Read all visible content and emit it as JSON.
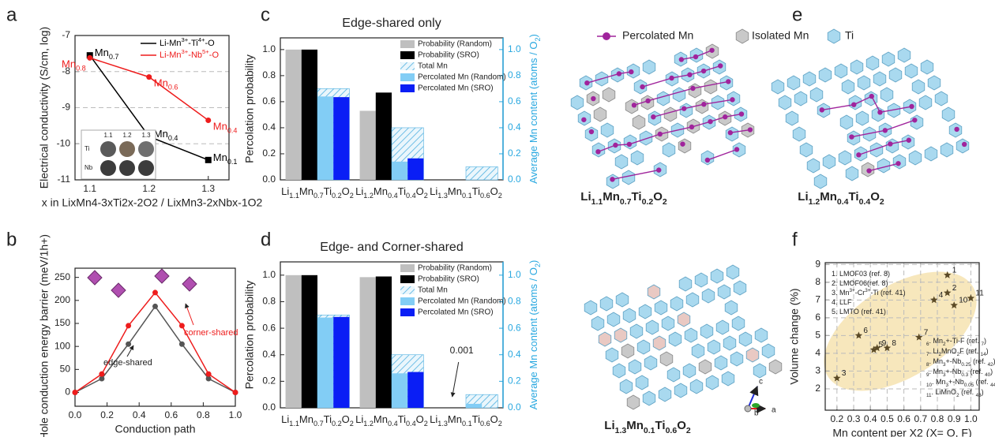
{
  "panel_letters": [
    "a",
    "b",
    "c",
    "d",
    "e",
    "f"
  ],
  "chart_data": [
    {
      "type": "line",
      "ylabel": "Electrical conductivity (S/cm, log)",
      "xlabel": "x in LixMn4-3xTi2x-2O2 / LixMn3-2xNbx-1O2",
      "x": [
        1.1,
        1.2,
        1.3
      ],
      "xlim": [
        1.075,
        1.335
      ],
      "xticks": [
        1.1,
        1.2,
        1.3
      ],
      "ylim": [
        -11,
        -7
      ],
      "yticks": [
        -11,
        -10,
        -9,
        -8,
        -7
      ],
      "grid": "y",
      "legend": "upper right",
      "series": [
        {
          "name": "Li-Mn3+-Ti4+-O",
          "color": "#000000",
          "marker": "square",
          "values": [
            -7.55,
            -9.8,
            -10.45
          ],
          "point_labels": [
            "Mn0.7",
            "Mn0.4",
            "Mn0.1"
          ]
        },
        {
          "name": "Li-Mn3+-Nb5+-O",
          "color": "#ee1c1c",
          "marker": "circle",
          "values": [
            -7.62,
            -8.15,
            -9.35
          ],
          "point_labels": [
            "Mn0.8",
            "Mn0.6",
            "Mn0.4"
          ]
        }
      ],
      "inset_labels": {
        "columns": [
          "1.1",
          "1.2",
          "1.3"
        ],
        "rows": [
          "Ti",
          "Nb"
        ]
      }
    },
    {
      "type": "line",
      "ylabel": "Hole conduction energy barrier (meV/1h+)",
      "xlabel": "Conduction path",
      "x": [
        0,
        0.167,
        0.333,
        0.5,
        0.667,
        0.833,
        1.0
      ],
      "xlim": [
        0,
        1
      ],
      "xticks": [
        {
          "value": 0,
          "label": "0.0"
        },
        0.2,
        0.4,
        0.6,
        0.8,
        {
          "value": 1,
          "label": "1.0"
        }
      ],
      "ylim": [
        -30,
        270
      ],
      "yticks": [
        0,
        50,
        100,
        150,
        200,
        250
      ],
      "series": [
        {
          "name": "edge-shared",
          "color": "#555555",
          "marker": "circle",
          "values": [
            0,
            30,
            105,
            187,
            105,
            30,
            0
          ]
        },
        {
          "name": "corner-shared",
          "color": "#ee1c1c",
          "marker": "circle",
          "values": [
            0,
            40,
            145,
            217,
            145,
            40,
            0
          ]
        }
      ]
    },
    {
      "type": "bar",
      "title": "Edge-shared only",
      "ylabel": "Percolation probability",
      "y2label": "Average Mn content (atoms / O2)",
      "categories": [
        "Li1.1Mn0.7Ti0.2O2",
        "Li1.2Mn0.4Ti0.4O2",
        "Li1.3Mn0.1Ti0.6O2"
      ],
      "ylim": [
        0,
        1.09
      ],
      "yticks": [
        {
          "value": 0,
          "label": "0.0"
        },
        0.2,
        0.4,
        0.6,
        0.8,
        {
          "value": 1,
          "label": "1.0"
        }
      ],
      "y2lim": [
        0,
        1.09
      ],
      "y2ticks": [
        {
          "value": 0,
          "label": "0.0"
        },
        0.2,
        0.4,
        0.6,
        0.8,
        {
          "value": 1,
          "label": "1.0"
        }
      ],
      "legend": "upper right",
      "series": [
        {
          "name": "Probability (Random)",
          "color": "#bfbfbf",
          "values": [
            1.0,
            0.53,
            0
          ]
        },
        {
          "name": "Probability (SRO)",
          "color": "#000000",
          "values": [
            1.0,
            0.67,
            0
          ]
        },
        {
          "name": "Total Mn",
          "color": "#4fb0e0",
          "pattern": "hatch",
          "axis": "y2",
          "values": [
            0.7,
            0.4,
            0.1
          ]
        },
        {
          "name": "Percolated Mn (Random)",
          "color": "#82cdf5",
          "axis": "y2",
          "values": [
            0.64,
            0.14,
            0
          ]
        },
        {
          "name": "Percolated Mn (SRO)",
          "color": "#0a1ef5",
          "axis": "y2",
          "values": [
            0.635,
            0.165,
            0
          ]
        }
      ]
    },
    {
      "type": "bar",
      "title": "Edge- and Corner-shared",
      "ylabel": "Percolation probability",
      "y2label": "Average Mn content (atoms / O2)",
      "categories": [
        "Li1.1Mn0.7Ti0.2O2",
        "Li1.2Mn0.4Ti0.4O2",
        "Li1.3Mn0.1Ti0.6O2"
      ],
      "ylim": [
        0,
        1.1
      ],
      "yticks": [
        {
          "value": 0,
          "label": "0.0"
        },
        0.2,
        0.4,
        0.6,
        0.8,
        {
          "value": 1,
          "label": "1.0"
        }
      ],
      "y2lim": [
        0,
        1.1
      ],
      "y2ticks": [
        {
          "value": 0,
          "label": "0.0"
        },
        0.2,
        0.4,
        0.6,
        0.8,
        {
          "value": 1,
          "label": "1.0"
        }
      ],
      "legend": "upper right",
      "annotations": [
        "0.001"
      ],
      "series": [
        {
          "name": "Probability (Random)",
          "color": "#bfbfbf",
          "values": [
            1.0,
            0.985,
            0
          ]
        },
        {
          "name": "Probability (SRO)",
          "color": "#000000",
          "values": [
            1.0,
            0.99,
            0.001
          ]
        },
        {
          "name": "Total Mn",
          "color": "#4fb0e0",
          "pattern": "hatch",
          "axis": "y2",
          "values": [
            0.7,
            0.4,
            0.1
          ]
        },
        {
          "name": "Percolated Mn (Random)",
          "color": "#82cdf5",
          "axis": "y2",
          "values": [
            0.68,
            0.26,
            0.03
          ]
        },
        {
          "name": "Percolated Mn (SRO)",
          "color": "#0a1ef5",
          "axis": "y2",
          "values": [
            0.685,
            0.27,
            0
          ]
        }
      ]
    },
    {
      "type": "scatter",
      "ylabel": "Volume change (%)",
      "xlabel": "Mn content per X2 (X= O, F)",
      "xlim": [
        0.13,
        1.05
      ],
      "xticks": [
        0.2,
        0.3,
        0.4,
        0.5,
        0.6,
        0.7,
        0.8,
        0.9,
        {
          "value": 1,
          "label": "1.0"
        }
      ],
      "ylim": [
        0.8,
        9.1
      ],
      "yticks": [
        2,
        3,
        4,
        5,
        6,
        7,
        8,
        9
      ],
      "grid": "both",
      "series": [
        {
          "color": "#5b4a26",
          "x": [
            0.86,
            0.86,
            0.2,
            0.78,
            0.42,
            0.33,
            0.69,
            0.5,
            0.44,
            0.9,
            1.0
          ],
          "values": [
            8.4,
            7.4,
            2.6,
            7.0,
            4.2,
            5.0,
            4.9,
            4.3,
            4.3,
            6.7,
            7.1
          ],
          "point_labels": [
            "1",
            "2",
            "3",
            "4",
            "5",
            "6",
            "7",
            "8",
            "9",
            "10",
            "11"
          ]
        }
      ],
      "notes": [
        "1. LMOF03 (ref. 8)",
        "2. LMOF06(ref. 8)",
        "3. Mn3+-Cr3+-Ti (ref. 41)",
        "4. LLF",
        "5. LMTO (ref. 41)",
        "6. Mn2+-Ti-F (ref. 7)",
        "7. Li2MnO2F (ref. 14)",
        "8. Mn3+-Nb0.25 (ref. 42)",
        "9. Mn3+-Nb0.3 (ref. 40)",
        "10. Mn3+-Nb0.05 (ref. 44)",
        "11. LiMnO2 (ref. 43)"
      ]
    }
  ],
  "structure_panel": {
    "legend": [
      "Percolated Mn",
      "Isolated Mn",
      "Ti"
    ],
    "labels": [
      "Li1.1Mn0.7Ti0.2O2",
      "Li1.2Mn0.4Ti0.4O2",
      "Li1.3Mn0.1Ti0.6O2"
    ],
    "axes": [
      "c",
      "b",
      "a"
    ]
  }
}
